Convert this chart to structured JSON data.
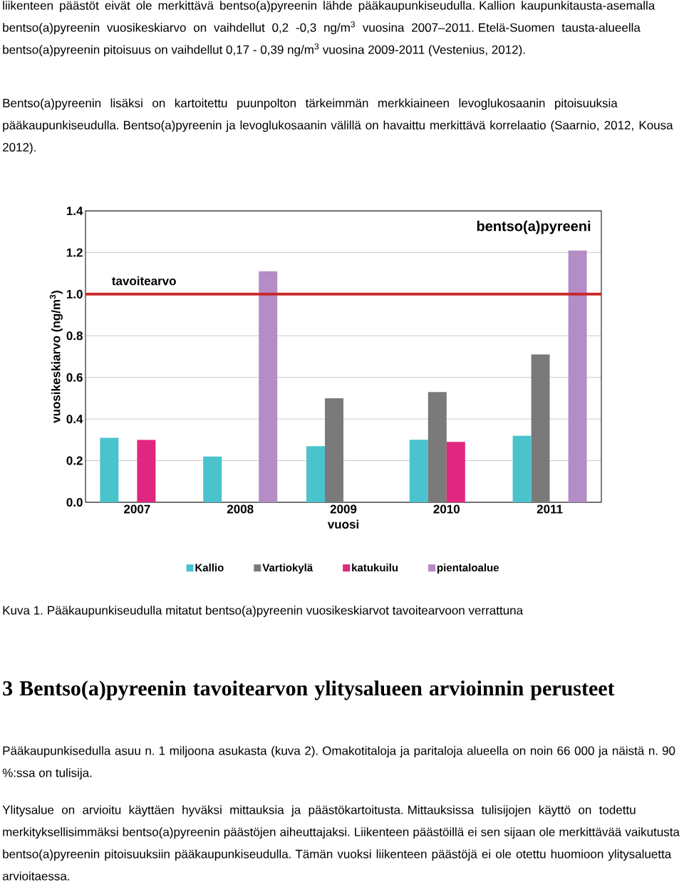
{
  "chart_data": {
    "type": "bar",
    "title": "bentso(a)pyreeni",
    "xlabel": "vuosi",
    "ylabel": "vuosikeskiarvo (ng/m$^{3}$)",
    "categories": [
      "2007",
      "2008",
      "2009",
      "2010",
      "2011"
    ],
    "series": [
      {
        "name": "Kallio",
        "color": "#4bc3cc",
        "values": [
          0.31,
          0.22,
          0.27,
          0.3,
          0.32
        ]
      },
      {
        "name": "Vartiokylä",
        "color": "#7a7a7a",
        "values": [
          null,
          null,
          0.5,
          0.53,
          0.71
        ]
      },
      {
        "name": "katukuilu",
        "color": "#e0267e",
        "values": [
          0.3,
          null,
          null,
          0.29,
          null
        ]
      },
      {
        "name": "pientaloalue",
        "color": "#b48cc6",
        "values": [
          null,
          1.11,
          null,
          null,
          1.21
        ]
      }
    ],
    "ylim": [
      0,
      1.4
    ],
    "yticks": [
      {
        "value": 0,
        "label": "0.0"
      },
      {
        "value": 0.2,
        "label": "0.2"
      },
      {
        "value": 0.4,
        "label": "0.4"
      },
      {
        "value": 0.6,
        "label": "0.6"
      },
      {
        "value": 0.8,
        "label": "0.8"
      },
      {
        "value": 1.0,
        "label": "1.0"
      },
      {
        "value": 1.2,
        "label": "1.2"
      },
      {
        "value": 1.4,
        "label": "1.4"
      }
    ],
    "ref_lines": [
      {
        "axis": "y",
        "value": 1.0,
        "label": "tavoitearvo",
        "color": "#c8282a"
      }
    ],
    "grid": "y",
    "legend": "bottom",
    "annotations": [
      "liikenteen päästöt eivät ole merkittävä bentso(a)pyreenin lähde pääkaupunkiseudulla. Kallion kaupunkitausta-asemalla bentso(a)pyreenin vuosikeskiarvo on vaihdellut 0,2 -0,3 ng/m$^{3}$ vuosina 2007–2011. Etelä-Suomen tausta-alueella bentso(a)pyreenin pitoisuus on vaihdellut 0,17 - 0,39 ng/m$^{3}$ vuosina 2009-2011 (Vestenius, 2012).",
      "Bentso(a)pyreenin lisäksi on kartoitettu puunpolton tärkeimmän merkkiaineen levoglukosaanin pitoisuuksia pääkaupunkiseudulla. Bentso(a)pyreenin ja levoglukosaanin välillä on havaittu merkittävä korrelaatio (Saarnio, 2012, Kousa 2012).",
      "Kuva 1. Pääkaupunkiseudulla mitatut bentso(a)pyreenin vuosikeskiarvot tavoitearvoon verrattuna",
      "3 Bentso(a)pyreenin tavoitearvon ylitysalueen arvioinnin perusteet",
      "Pääkaupunkisedulla asuu n. 1 miljoona asukasta (kuva 2). Omakotitaloja ja paritaloja alueella on noin 66 000 ja näistä n. 90 %:ssa on tulisija.",
      "Ylitysalue on arvioitu käyttäen hyväksi mittauksia ja päästökartoitusta. Mittauksissa tulisijojen käyttö on todettu merkityksellisimmäksi bentso(a)pyreenin päästöjen aiheuttajaksi. Liikenteen päästöillä ei sen sijaan ole merkittävää vaikutusta bentso(a)pyreenin pitoisuuksiin pääkaupunkiseudulla. Tämän vuoksi liikenteen päästöjä ei ole otettu huomioon ylitysaluetta arvioitaessa."
    ]
  }
}
